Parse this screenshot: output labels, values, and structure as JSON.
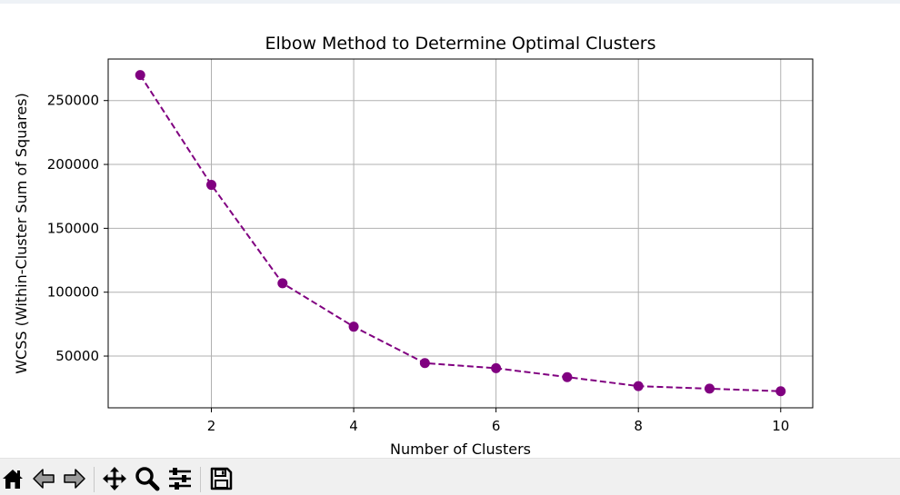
{
  "chart_data": {
    "type": "line",
    "title": "Elbow Method to Determine Optimal Clusters",
    "xlabel": "Number of Clusters",
    "ylabel": "WCSS (Within-Cluster Sum of Squares)",
    "x": [
      1,
      2,
      3,
      4,
      5,
      6,
      7,
      8,
      9,
      10
    ],
    "series": [
      {
        "values": [
          270000,
          184000,
          107000,
          73000,
          44500,
          40500,
          33500,
          26500,
          24500,
          22500
        ]
      }
    ],
    "xlim": [
      0.55,
      10.45
    ],
    "ylim": [
      9500,
      282500
    ],
    "xticks": [
      2,
      4,
      6,
      8,
      10
    ],
    "yticks": [
      50000,
      100000,
      150000,
      200000,
      250000
    ],
    "xtick_labels": [
      "2",
      "4",
      "6",
      "8",
      "10"
    ],
    "ytick_labels": [
      "50000",
      "100000",
      "150000",
      "200000",
      "250000"
    ],
    "grid": true,
    "line_style": "dashed",
    "marker": "circle",
    "line_color": "#800080",
    "marker_color": "#800080"
  },
  "toolbar": {
    "buttons": [
      {
        "name": "home-button",
        "icon": "home-icon"
      },
      {
        "name": "back-button",
        "icon": "back-arrow-icon"
      },
      {
        "name": "forward-button",
        "icon": "forward-arrow-icon"
      },
      {
        "name": "pan-button",
        "icon": "move-icon"
      },
      {
        "name": "zoom-button",
        "icon": "magnifier-icon"
      },
      {
        "name": "configure-subplots-button",
        "icon": "sliders-icon"
      },
      {
        "name": "save-button",
        "icon": "floppy-disk-icon"
      }
    ]
  }
}
